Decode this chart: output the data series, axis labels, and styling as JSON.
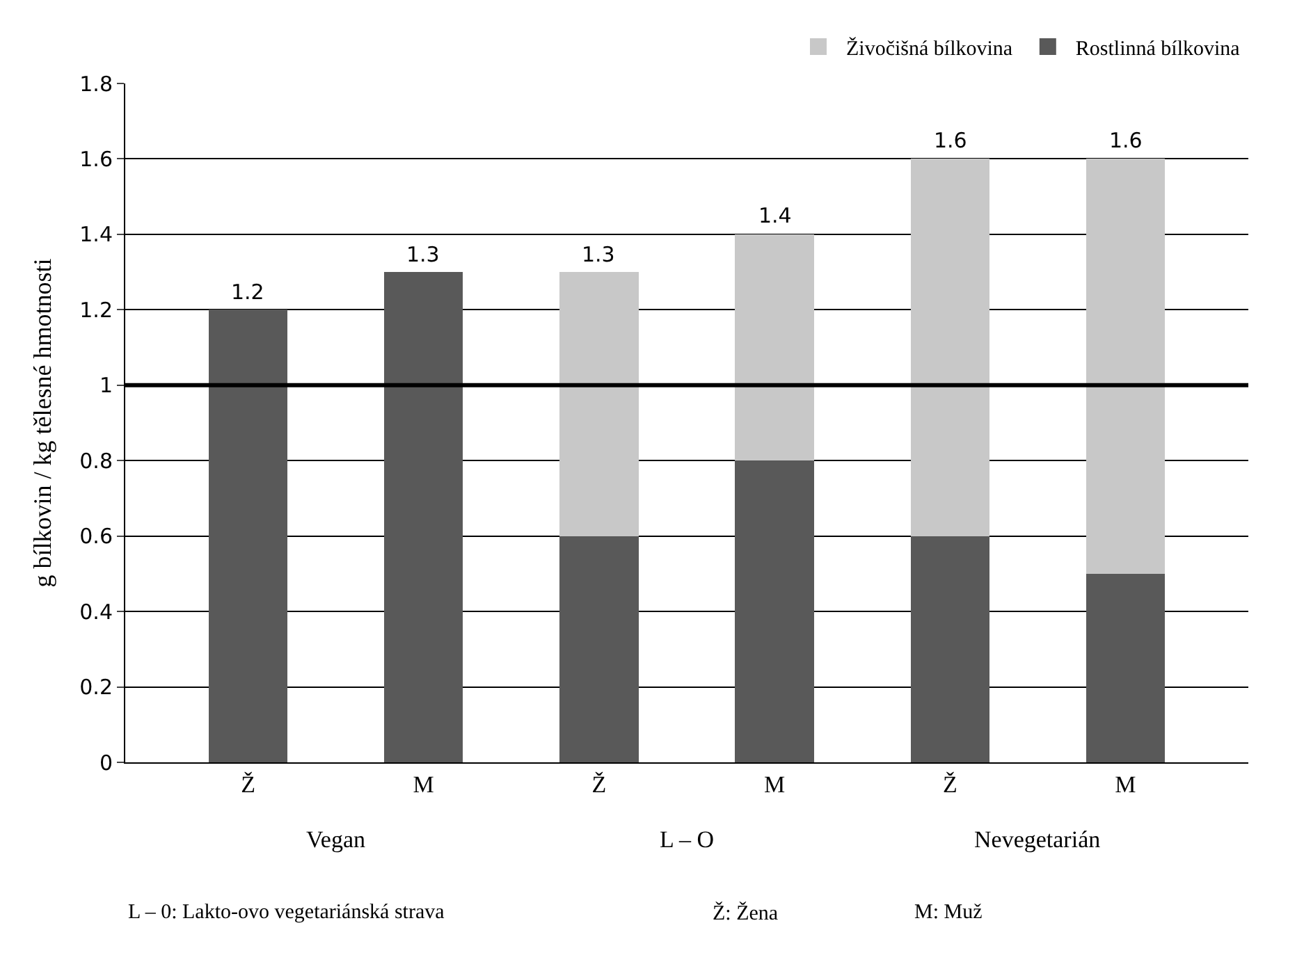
{
  "chart_data": {
    "type": "bar",
    "stacked": true,
    "categories": [
      "Ž",
      "M",
      "Ž",
      "M",
      "Ž",
      "M"
    ],
    "series": [
      {
        "name": "Rostlinná bílkovina",
        "color": "#595959",
        "values": [
          1.2,
          1.3,
          0.6,
          0.8,
          0.6,
          0.5
        ]
      },
      {
        "name": "Živočišná bílkovina",
        "color": "#c8c8c8",
        "values": [
          0,
          0,
          0.7,
          0.6,
          1.0,
          1.1
        ]
      }
    ],
    "totals": [
      "1.2",
      "1.3",
      "1.3",
      "1.4",
      "1.6",
      "1.6"
    ],
    "ylabel": "g bílkovin / kg tělesné hmotnosti",
    "ylim": [
      0,
      1.8
    ],
    "yticks": [
      0,
      0.2,
      0.4,
      0.6,
      0.8,
      1,
      1.2,
      1.4,
      1.6,
      1.8
    ],
    "grid": "y",
    "legend": "top right",
    "ref_lines": [
      {
        "axis": "y",
        "value": 1,
        "color": "#000000"
      }
    ],
    "annotations": [
      "Vegan",
      "L – O",
      "Nevegetarián",
      "L – 0: Lakto-ovo vegetariánská strava",
      "Ž: Žena",
      "M: Muž"
    ]
  }
}
